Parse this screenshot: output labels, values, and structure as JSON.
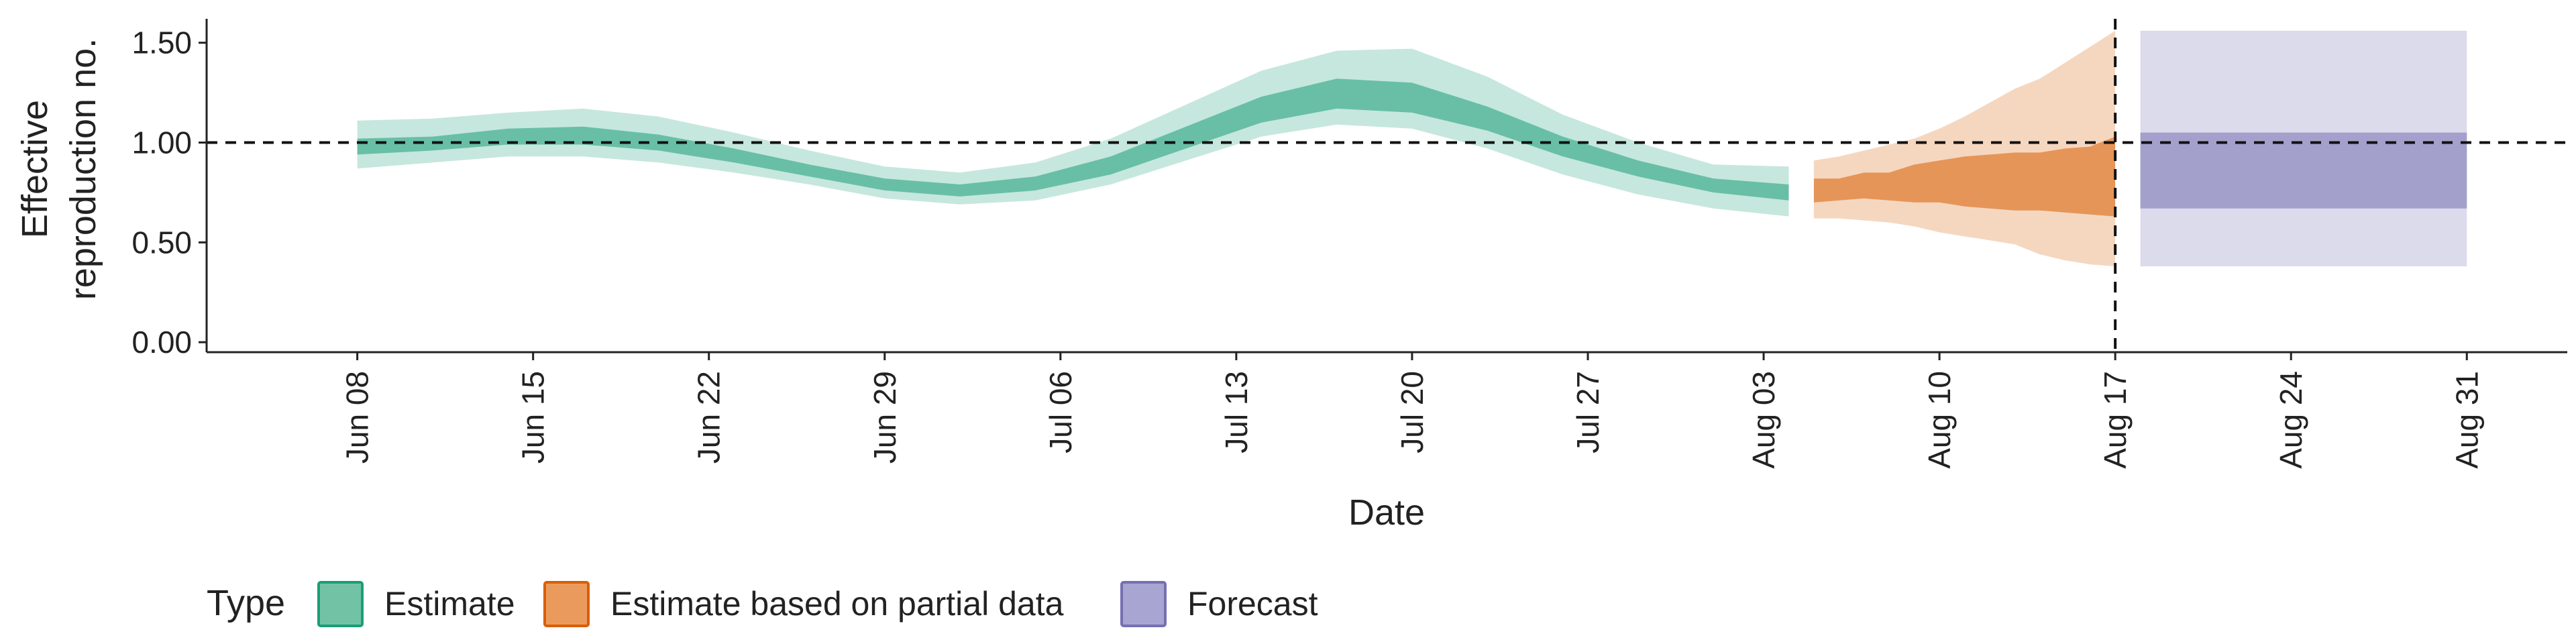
{
  "chart_data": {
    "type": "area",
    "title": "",
    "xlabel": "Date",
    "ylabel_lines": [
      "Effective",
      "reproduction no."
    ],
    "ylim": [
      -0.05,
      1.62
    ],
    "yticks": [
      0.0,
      0.5,
      1.0,
      1.5
    ],
    "ytick_labels": [
      "0.00",
      "0.50",
      "1.00",
      "1.50"
    ],
    "xlim": [
      "2020-06-02",
      "2020-09-04"
    ],
    "xticks": [
      "2020-06-08",
      "2020-06-15",
      "2020-06-22",
      "2020-06-29",
      "2020-07-06",
      "2020-07-13",
      "2020-07-20",
      "2020-07-27",
      "2020-08-03",
      "2020-08-10",
      "2020-08-17",
      "2020-08-24",
      "2020-08-31"
    ],
    "xtick_labels": [
      "Jun 08",
      "Jun 15",
      "Jun 22",
      "Jun 29",
      "Jul 06",
      "Jul 13",
      "Jul 20",
      "Jul 27",
      "Aug 03",
      "Aug 10",
      "Aug 17",
      "Aug 24",
      "Aug 31"
    ],
    "reference_line_y": 1.0,
    "forecast_start": "2020-08-17",
    "grid": false,
    "legend": {
      "title": "Type",
      "position": "bottom-left",
      "items": [
        {
          "label": "Estimate",
          "fill": "#72c3a6",
          "stroke": "#1b9e77"
        },
        {
          "label": "Estimate based on partial data",
          "fill": "#eb9a5e",
          "stroke": "#d95f02"
        },
        {
          "label": "Forecast",
          "fill": "#a8a5d2",
          "stroke": "#7570b3"
        }
      ]
    },
    "series": [
      {
        "name": "Estimate",
        "color": "#1b9e77",
        "dates": [
          "2020-06-08",
          "2020-06-11",
          "2020-06-14",
          "2020-06-17",
          "2020-06-20",
          "2020-06-23",
          "2020-06-26",
          "2020-06-29",
          "2020-07-02",
          "2020-07-05",
          "2020-07-08",
          "2020-07-11",
          "2020-07-14",
          "2020-07-17",
          "2020-07-20",
          "2020-07-23",
          "2020-07-26",
          "2020-07-29",
          "2020-08-01",
          "2020-08-04"
        ],
        "lower90": [
          0.87,
          0.9,
          0.93,
          0.93,
          0.9,
          0.85,
          0.79,
          0.72,
          0.69,
          0.71,
          0.79,
          0.91,
          1.03,
          1.09,
          1.07,
          0.97,
          0.84,
          0.74,
          0.67,
          0.63
        ],
        "lower50": [
          0.94,
          0.96,
          0.99,
          0.99,
          0.96,
          0.9,
          0.83,
          0.76,
          0.73,
          0.76,
          0.84,
          0.97,
          1.1,
          1.17,
          1.15,
          1.06,
          0.93,
          0.83,
          0.75,
          0.71
        ],
        "upper50": [
          1.02,
          1.03,
          1.07,
          1.08,
          1.04,
          0.97,
          0.89,
          0.82,
          0.79,
          0.83,
          0.93,
          1.08,
          1.23,
          1.32,
          1.3,
          1.18,
          1.03,
          0.91,
          0.82,
          0.79
        ],
        "upper90": [
          1.11,
          1.12,
          1.15,
          1.17,
          1.13,
          1.05,
          0.96,
          0.88,
          0.85,
          0.9,
          1.02,
          1.19,
          1.36,
          1.46,
          1.47,
          1.33,
          1.14,
          1.0,
          0.89,
          0.88
        ]
      },
      {
        "name": "Estimate based on partial data",
        "color": "#d95f02",
        "dates": [
          "2020-08-05",
          "2020-08-06",
          "2020-08-07",
          "2020-08-08",
          "2020-08-09",
          "2020-08-10",
          "2020-08-11",
          "2020-08-12",
          "2020-08-13",
          "2020-08-14",
          "2020-08-15",
          "2020-08-16",
          "2020-08-17"
        ],
        "lower90": [
          0.62,
          0.62,
          0.61,
          0.6,
          0.58,
          0.55,
          0.53,
          0.51,
          0.49,
          0.44,
          0.41,
          0.39,
          0.38
        ],
        "lower50": [
          0.7,
          0.71,
          0.72,
          0.71,
          0.7,
          0.7,
          0.68,
          0.67,
          0.66,
          0.66,
          0.65,
          0.64,
          0.63
        ],
        "upper50": [
          0.82,
          0.82,
          0.85,
          0.85,
          0.89,
          0.91,
          0.93,
          0.94,
          0.95,
          0.95,
          0.97,
          0.98,
          1.03
        ],
        "upper90": [
          0.91,
          0.93,
          0.96,
          0.99,
          1.02,
          1.07,
          1.13,
          1.2,
          1.27,
          1.32,
          1.4,
          1.48,
          1.56
        ]
      },
      {
        "name": "Forecast",
        "color": "#7570b3",
        "dates": [
          "2020-08-18",
          "2020-08-31"
        ],
        "lower90": [
          0.38,
          0.38
        ],
        "lower50": [
          0.67,
          0.67
        ],
        "upper50": [
          1.05,
          1.05
        ],
        "upper90": [
          1.56,
          1.56
        ]
      }
    ]
  }
}
